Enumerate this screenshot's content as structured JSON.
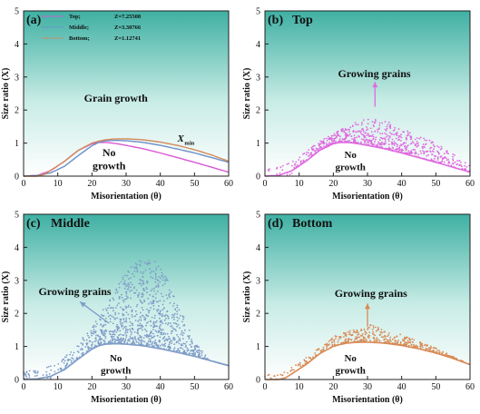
{
  "chart_data": [
    {
      "panel": "(a)",
      "type": "line",
      "xlabel": "Misorientation (θ)",
      "ylabel": "Size ratio (X)",
      "xlim": [
        0,
        60
      ],
      "ylim": [
        0,
        5
      ],
      "xticks": [
        "0",
        "10",
        "20",
        "30",
        "40",
        "50",
        "60"
      ],
      "yticks": [
        "0",
        "1",
        "2",
        "3",
        "4",
        "5"
      ],
      "legend_position": "top-left",
      "annotations": {
        "region_above": "Grain growth",
        "region_below_1": "No",
        "region_below_2": "growth",
        "curve_label": "X",
        "curve_label_sub": "min"
      },
      "series": [
        {
          "name": "Top;",
          "z": "Z=7.25508",
          "color": "#d957d4",
          "x": [
            0,
            4,
            8,
            12,
            16,
            20,
            22,
            24,
            26,
            28,
            30,
            35,
            40,
            45,
            50,
            55,
            60
          ],
          "y": [
            0,
            0.02,
            0.17,
            0.45,
            0.78,
            0.98,
            1.02,
            1.02,
            1.0,
            0.97,
            0.93,
            0.83,
            0.7,
            0.56,
            0.42,
            0.27,
            0.12
          ]
        },
        {
          "name": "Middle;",
          "z": "Z=3.30766",
          "color": "#6e8fc7",
          "x": [
            0,
            4,
            8,
            12,
            16,
            20,
            22,
            24,
            26,
            28,
            30,
            35,
            40,
            45,
            50,
            55,
            60
          ],
          "y": [
            0,
            0.02,
            0.1,
            0.3,
            0.62,
            0.92,
            1.02,
            1.07,
            1.08,
            1.08,
            1.07,
            1.02,
            0.93,
            0.82,
            0.7,
            0.56,
            0.42
          ]
        },
        {
          "name": "Bottom;",
          "z": "Z=1.12741",
          "color": "#d4895a",
          "x": [
            0,
            4,
            6,
            8,
            12,
            16,
            20,
            22,
            24,
            26,
            28,
            30,
            35,
            40,
            45,
            50,
            55,
            60
          ],
          "y": [
            0,
            0,
            0.05,
            0.18,
            0.45,
            0.78,
            1.0,
            1.06,
            1.1,
            1.12,
            1.13,
            1.13,
            1.1,
            1.03,
            0.93,
            0.8,
            0.64,
            0.45
          ]
        }
      ]
    },
    {
      "panel": "(b)",
      "title": "Top",
      "type": "scatter",
      "xlabel": "Misorientation (θ)",
      "ylabel": "Size ratio (X)",
      "xlim": [
        0,
        60
      ],
      "ylim": [
        0,
        5
      ],
      "xticks": [
        "0",
        "10",
        "20",
        "30",
        "40",
        "50",
        "60"
      ],
      "yticks": [
        "0",
        "1",
        "2",
        "3",
        "4",
        "5"
      ],
      "color": "#e06ae0",
      "annotations": {
        "arrow_label": "Growing grains",
        "region_below_1": "No",
        "region_below_2": "growth"
      },
      "curve": {
        "x": [
          0,
          4,
          8,
          12,
          16,
          20,
          22,
          24,
          26,
          28,
          30,
          35,
          40,
          45,
          50,
          55,
          60
        ],
        "y": [
          0,
          0.02,
          0.17,
          0.45,
          0.78,
          0.98,
          1.02,
          1.02,
          1.0,
          0.97,
          0.93,
          0.83,
          0.7,
          0.56,
          0.42,
          0.27,
          0.12
        ]
      },
      "scatter_envelope": {
        "x": [
          0,
          5,
          10,
          15,
          20,
          25,
          30,
          35,
          40,
          45,
          50,
          55,
          60
        ],
        "upper": [
          0.2,
          0.3,
          0.6,
          1.0,
          1.3,
          1.55,
          1.8,
          1.7,
          1.5,
          1.25,
          1.0,
          0.7,
          0.3
        ],
        "count": 700
      }
    },
    {
      "panel": "(c)",
      "title": "Middle",
      "type": "scatter",
      "xlabel": "Misorientation (θ)",
      "ylabel": "Size ratio (X)",
      "xlim": [
        0,
        60
      ],
      "ylim": [
        0,
        5
      ],
      "xticks": [
        "0",
        "10",
        "20",
        "30",
        "40",
        "50",
        "60"
      ],
      "yticks": [
        "0",
        "1",
        "2",
        "3",
        "4",
        "5"
      ],
      "color": "#7f9cc8",
      "annotations": {
        "arrow_label": "Growing grains",
        "region_below_1": "No",
        "region_below_2": "growth"
      },
      "curve": {
        "x": [
          0,
          4,
          8,
          12,
          16,
          20,
          22,
          24,
          26,
          28,
          30,
          35,
          40,
          45,
          50,
          55,
          60
        ],
        "y": [
          0,
          0.02,
          0.1,
          0.3,
          0.62,
          0.92,
          1.02,
          1.07,
          1.08,
          1.08,
          1.07,
          1.02,
          0.93,
          0.82,
          0.7,
          0.56,
          0.42
        ]
      },
      "scatter_envelope": {
        "x": [
          0,
          5,
          10,
          15,
          20,
          25,
          30,
          35,
          40,
          45,
          50,
          55,
          60
        ],
        "upper": [
          0.3,
          0.3,
          0.5,
          1.0,
          1.6,
          2.4,
          3.3,
          3.8,
          3.5,
          2.4,
          1.2,
          0.5,
          0.3
        ],
        "count": 1100
      }
    },
    {
      "panel": "(d)",
      "title": "Bottom",
      "type": "scatter",
      "xlabel": "Misorientation (θ)",
      "ylabel": "Size ratio (X)",
      "xlim": [
        0,
        60
      ],
      "ylim": [
        0,
        5
      ],
      "xticks": [
        "0",
        "10",
        "20",
        "30",
        "40",
        "50",
        "60"
      ],
      "yticks": [
        "0",
        "1",
        "2",
        "3",
        "4",
        "5"
      ],
      "color": "#d98a55",
      "annotations": {
        "arrow_label": "Growing grains",
        "region_below_1": "No",
        "region_below_2": "growth"
      },
      "curve": {
        "x": [
          0,
          4,
          6,
          8,
          12,
          16,
          20,
          22,
          24,
          26,
          28,
          30,
          35,
          40,
          45,
          50,
          55,
          60
        ],
        "y": [
          0,
          0,
          0.05,
          0.18,
          0.45,
          0.78,
          1.0,
          1.06,
          1.1,
          1.12,
          1.13,
          1.13,
          1.1,
          1.03,
          0.93,
          0.8,
          0.64,
          0.45
        ]
      },
      "scatter_envelope": {
        "x": [
          0,
          5,
          10,
          15,
          20,
          25,
          30,
          35,
          40,
          45,
          50,
          55,
          60
        ],
        "upper": [
          0.15,
          0.2,
          0.5,
          0.9,
          1.3,
          1.5,
          1.7,
          1.5,
          1.35,
          1.15,
          0.95,
          0.7,
          0.45
        ],
        "count": 500
      }
    }
  ]
}
